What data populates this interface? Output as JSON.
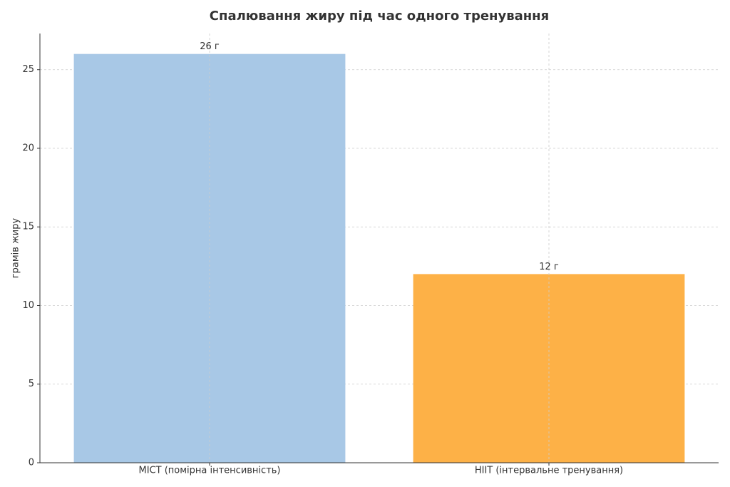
{
  "chart_data": {
    "type": "bar",
    "title": "Спалювання жиру під час одного тренування",
    "y_label": "грамів жиру",
    "categories": [
      "MICT (помірна інтенсивність)",
      "HIIT (інтервальне тренування)"
    ],
    "values": [
      26,
      12
    ],
    "value_labels": [
      "26 г",
      "12 г"
    ],
    "colors": [
      "#a8c8e6",
      "#fdb147"
    ],
    "ylim": [
      0,
      27.3
    ],
    "yticks": [
      0,
      5,
      10,
      15,
      20,
      25
    ],
    "grid": true
  }
}
